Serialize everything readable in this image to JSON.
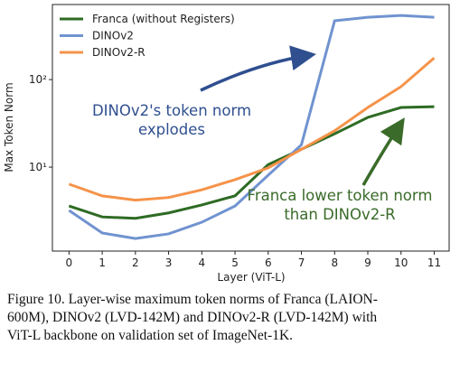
{
  "chart_data": {
    "type": "line",
    "x_label": "Layer (ViT-L)",
    "y_label": "Max Token Norm",
    "x": [
      0,
      1,
      2,
      3,
      4,
      5,
      6,
      7,
      8,
      9,
      10,
      11
    ],
    "series": [
      {
        "name": "Franca (without Registers)",
        "color": "#2e6b24",
        "values": [
          3.6,
          2.7,
          2.6,
          3.0,
          3.7,
          4.7,
          10.7,
          16,
          24,
          37,
          48,
          49
        ]
      },
      {
        "name": "DINOv2",
        "color": "#7093d0",
        "values": [
          3.2,
          1.77,
          1.53,
          1.73,
          2.35,
          3.6,
          8.1,
          18,
          470,
          515,
          540,
          515
        ]
      },
      {
        "name": "DINOv2-R",
        "color": "#f5934a",
        "values": [
          6.4,
          4.7,
          4.2,
          4.5,
          5.5,
          7.2,
          9.8,
          16,
          26,
          48,
          83,
          177
        ]
      }
    ],
    "xlim": [
      -0.5,
      11.45
    ],
    "xticks": [
      0,
      1,
      2,
      3,
      4,
      5,
      6,
      7,
      8,
      9,
      10,
      11
    ],
    "ylim": [
      1.1,
      720
    ],
    "yscale": "log",
    "yticks": [
      {
        "value": 10,
        "label": "10¹"
      },
      {
        "value": 100,
        "label": "10²"
      }
    ],
    "legend": "upper left",
    "annotations": [
      {
        "lines": [
          "DINOv2's token norm",
          "explodes"
        ],
        "color": "#2f4f8f"
      },
      {
        "lines": [
          "Franca lower token norm",
          "than DINOv2-R"
        ],
        "color": "#3a6b2a"
      }
    ]
  },
  "caption": [
    "Figure 10. Layer-wise maximum token norms of Franca (LAION-",
    "600M), DINOv2 (LVD-142M) and DINOv2-R (LVD-142M) with",
    "ViT-L backbone on validation set of ImageNet-1K."
  ]
}
